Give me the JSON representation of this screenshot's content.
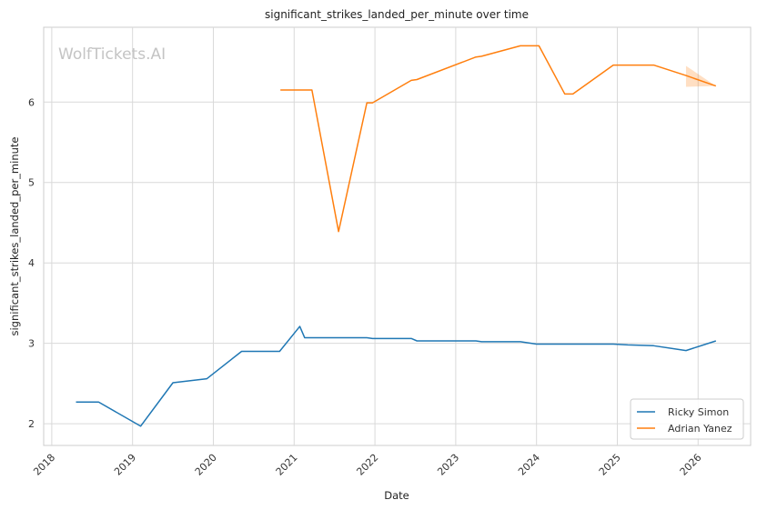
{
  "chart_data": {
    "type": "line",
    "title": "significant_strikes_landed_per_minute over time",
    "xlabel": "Date",
    "ylabel": "significant_strikes_landed_per_minute",
    "watermark": "WolfTickets.AI",
    "xlim": [
      2017.9,
      2026.65
    ],
    "ylim": [
      1.73,
      6.93
    ],
    "x_ticks": [
      2018,
      2019,
      2020,
      2021,
      2022,
      2023,
      2024,
      2025,
      2026
    ],
    "y_ticks": [
      2,
      3,
      4,
      5,
      6
    ],
    "grid": true,
    "legend_position": "lower-right",
    "series": [
      {
        "name": "Ricky Simon",
        "color": "#1f77b4",
        "points": [
          [
            2018.3,
            2.27
          ],
          [
            2018.58,
            2.27
          ],
          [
            2019.1,
            1.97
          ],
          [
            2019.5,
            2.51
          ],
          [
            2019.92,
            2.56
          ],
          [
            2020.35,
            2.9
          ],
          [
            2020.82,
            2.9
          ],
          [
            2021.07,
            3.21
          ],
          [
            2021.13,
            3.07
          ],
          [
            2021.9,
            3.07
          ],
          [
            2021.97,
            3.06
          ],
          [
            2022.45,
            3.06
          ],
          [
            2022.52,
            3.03
          ],
          [
            2023.25,
            3.03
          ],
          [
            2023.32,
            3.02
          ],
          [
            2023.8,
            3.02
          ],
          [
            2024.0,
            2.99
          ],
          [
            2024.95,
            2.99
          ],
          [
            2025.13,
            2.98
          ],
          [
            2025.45,
            2.97
          ],
          [
            2025.85,
            2.91
          ],
          [
            2026.22,
            3.03
          ]
        ]
      },
      {
        "name": "Adrian Yanez",
        "color": "#ff7f0e",
        "points": [
          [
            2020.83,
            6.15
          ],
          [
            2021.22,
            6.15
          ],
          [
            2021.55,
            4.39
          ],
          [
            2021.9,
            5.99
          ],
          [
            2021.97,
            5.99
          ],
          [
            2022.45,
            6.27
          ],
          [
            2022.52,
            6.28
          ],
          [
            2023.25,
            6.56
          ],
          [
            2023.32,
            6.57
          ],
          [
            2023.8,
            6.7
          ],
          [
            2024.03,
            6.7
          ],
          [
            2024.35,
            6.1
          ],
          [
            2024.45,
            6.1
          ],
          [
            2024.95,
            6.46
          ],
          [
            2025.45,
            6.46
          ],
          [
            2025.85,
            6.33
          ],
          [
            2026.22,
            6.2
          ]
        ],
        "band": {
          "x": [
            2025.85,
            2026.22
          ],
          "upper": [
            6.45,
            6.2
          ],
          "lower": [
            6.19,
            6.2
          ]
        }
      }
    ]
  }
}
